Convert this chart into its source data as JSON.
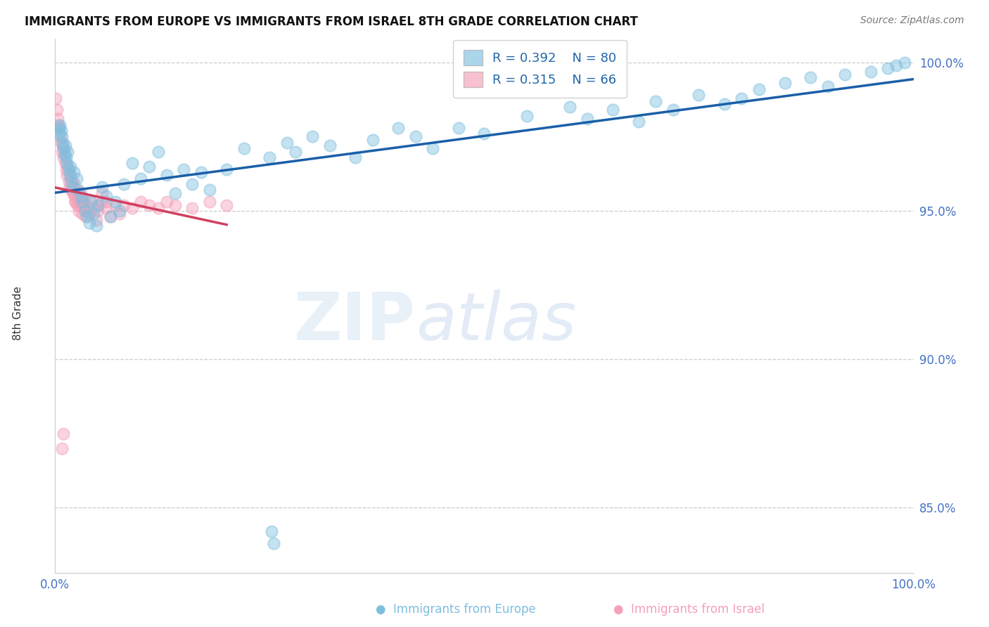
{
  "title": "IMMIGRANTS FROM EUROPE VS IMMIGRANTS FROM ISRAEL 8TH GRADE CORRELATION CHART",
  "source": "Source: ZipAtlas.com",
  "ylabel": "8th Grade",
  "xlim": [
    0.0,
    1.0
  ],
  "ylim": [
    0.828,
    1.008
  ],
  "yticks": [
    0.85,
    0.9,
    0.95,
    1.0
  ],
  "ytick_labels": [
    "85.0%",
    "90.0%",
    "95.0%",
    "100.0%"
  ],
  "xticks": [
    0.0,
    1.0
  ],
  "xtick_labels": [
    "0.0%",
    "100.0%"
  ],
  "legend_europe": "Immigrants from Europe",
  "legend_israel": "Immigrants from Israel",
  "R_europe": 0.392,
  "N_europe": 80,
  "R_israel": 0.315,
  "N_israel": 66,
  "color_europe": "#7fbfdf",
  "color_israel": "#f4a0b8",
  "line_color_europe": "#1a5fa8",
  "line_color_israel": "#d04060",
  "europe_x": [
    0.004,
    0.005,
    0.006,
    0.007,
    0.008,
    0.009,
    0.01,
    0.011,
    0.012,
    0.013,
    0.014,
    0.015,
    0.016,
    0.017,
    0.018,
    0.019,
    0.02,
    0.022,
    0.025,
    0.027,
    0.03,
    0.032,
    0.035,
    0.038,
    0.04,
    0.042,
    0.045,
    0.048,
    0.05,
    0.055,
    0.06,
    0.065,
    0.07,
    0.075,
    0.08,
    0.09,
    0.1,
    0.11,
    0.12,
    0.13,
    0.14,
    0.15,
    0.16,
    0.17,
    0.18,
    0.2,
    0.22,
    0.25,
    0.27,
    0.28,
    0.3,
    0.32,
    0.35,
    0.37,
    0.4,
    0.42,
    0.44,
    0.47,
    0.5,
    0.55,
    0.6,
    0.62,
    0.65,
    0.68,
    0.7,
    0.72,
    0.75,
    0.78,
    0.8,
    0.82,
    0.85,
    0.88,
    0.9,
    0.92,
    0.95,
    0.97,
    0.98,
    0.99,
    0.252,
    0.255
  ],
  "europe_y": [
    0.976,
    0.978,
    0.979,
    0.977,
    0.975,
    0.973,
    0.971,
    0.969,
    0.972,
    0.968,
    0.966,
    0.97,
    0.964,
    0.962,
    0.965,
    0.96,
    0.958,
    0.963,
    0.961,
    0.957,
    0.955,
    0.953,
    0.95,
    0.948,
    0.946,
    0.953,
    0.949,
    0.945,
    0.952,
    0.958,
    0.955,
    0.948,
    0.953,
    0.95,
    0.959,
    0.966,
    0.961,
    0.965,
    0.97,
    0.962,
    0.956,
    0.964,
    0.959,
    0.963,
    0.957,
    0.964,
    0.971,
    0.968,
    0.973,
    0.97,
    0.975,
    0.972,
    0.968,
    0.974,
    0.978,
    0.975,
    0.971,
    0.978,
    0.976,
    0.982,
    0.985,
    0.981,
    0.984,
    0.98,
    0.987,
    0.984,
    0.989,
    0.986,
    0.988,
    0.991,
    0.993,
    0.995,
    0.992,
    0.996,
    0.997,
    0.998,
    0.999,
    1.0,
    0.842,
    0.838
  ],
  "israel_x": [
    0.001,
    0.002,
    0.003,
    0.004,
    0.005,
    0.006,
    0.007,
    0.008,
    0.009,
    0.01,
    0.011,
    0.012,
    0.013,
    0.014,
    0.015,
    0.016,
    0.017,
    0.018,
    0.019,
    0.02,
    0.021,
    0.022,
    0.023,
    0.024,
    0.025,
    0.026,
    0.027,
    0.028,
    0.03,
    0.032,
    0.034,
    0.036,
    0.038,
    0.04,
    0.042,
    0.045,
    0.048,
    0.05,
    0.055,
    0.06,
    0.065,
    0.07,
    0.075,
    0.08,
    0.09,
    0.1,
    0.11,
    0.12,
    0.13,
    0.14,
    0.16,
    0.18,
    0.2,
    0.022,
    0.024,
    0.026,
    0.028,
    0.03,
    0.032,
    0.05,
    0.055,
    0.06,
    0.032,
    0.034,
    0.008,
    0.01
  ],
  "israel_y": [
    0.988,
    0.984,
    0.981,
    0.979,
    0.978,
    0.975,
    0.973,
    0.97,
    0.972,
    0.968,
    0.97,
    0.966,
    0.964,
    0.962,
    0.965,
    0.96,
    0.958,
    0.962,
    0.957,
    0.96,
    0.956,
    0.959,
    0.955,
    0.953,
    0.957,
    0.952,
    0.955,
    0.95,
    0.952,
    0.949,
    0.953,
    0.948,
    0.951,
    0.949,
    0.953,
    0.951,
    0.947,
    0.95,
    0.953,
    0.951,
    0.948,
    0.952,
    0.949,
    0.952,
    0.951,
    0.953,
    0.952,
    0.951,
    0.953,
    0.952,
    0.951,
    0.953,
    0.952,
    0.956,
    0.953,
    0.956,
    0.953,
    0.956,
    0.953,
    0.952,
    0.956,
    0.953,
    0.951,
    0.953,
    0.87,
    0.875
  ]
}
